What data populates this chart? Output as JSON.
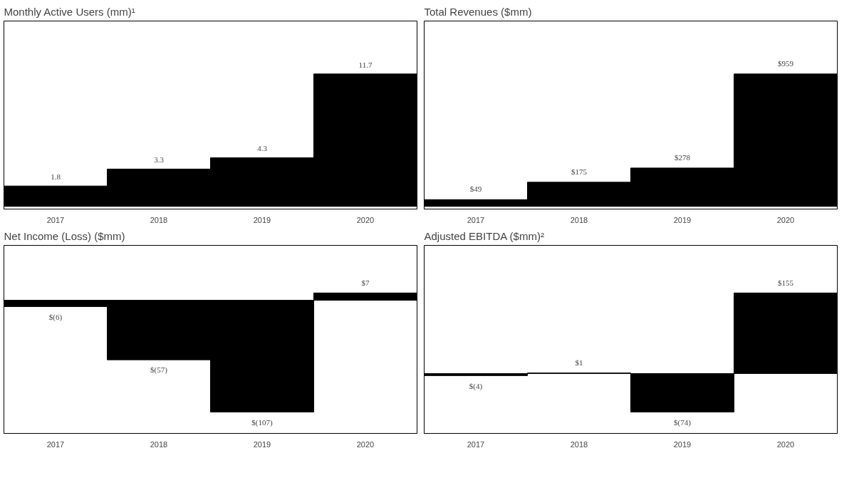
{
  "chart_data": [
    {
      "type": "bar",
      "title": "Monthly Active Users (mm)¹",
      "categories": [
        "2017",
        "2018",
        "2019",
        "2020"
      ],
      "values": [
        1.8,
        3.3,
        4.3,
        11.7
      ],
      "color": "#000000",
      "data_labels": true,
      "tick_labels": "x"
    },
    {
      "type": "bar",
      "title": "Total Revenues ($mm)",
      "categories": [
        "2017",
        "2018",
        "2019",
        "2020"
      ],
      "values": [
        49,
        175,
        278,
        959
      ],
      "color": "#000000",
      "value_labels": [
        "$49",
        "$175",
        "$278",
        "$959"
      ],
      "tick_labels": "x"
    },
    {
      "type": "bar",
      "title": "Net Income (Loss) ($mm)",
      "categories": [
        "2017",
        "2018",
        "2019",
        "2020"
      ],
      "values": [
        -6,
        -57,
        -107,
        7
      ],
      "color": "#000000",
      "value_labels": [
        "$(6)",
        "$(57)",
        "$(107)",
        "$7"
      ],
      "tick_labels": "x"
    },
    {
      "type": "bar",
      "title": "Adjusted EBITDA ($mm)²",
      "categories": [
        "2017",
        "2018",
        "2019",
        "2020"
      ],
      "values": [
        -4,
        1,
        -74,
        155
      ],
      "color": "#000000",
      "value_labels": [
        "$(4)",
        "$1",
        "$(74)",
        "$155"
      ],
      "tick_labels": "x"
    }
  ]
}
